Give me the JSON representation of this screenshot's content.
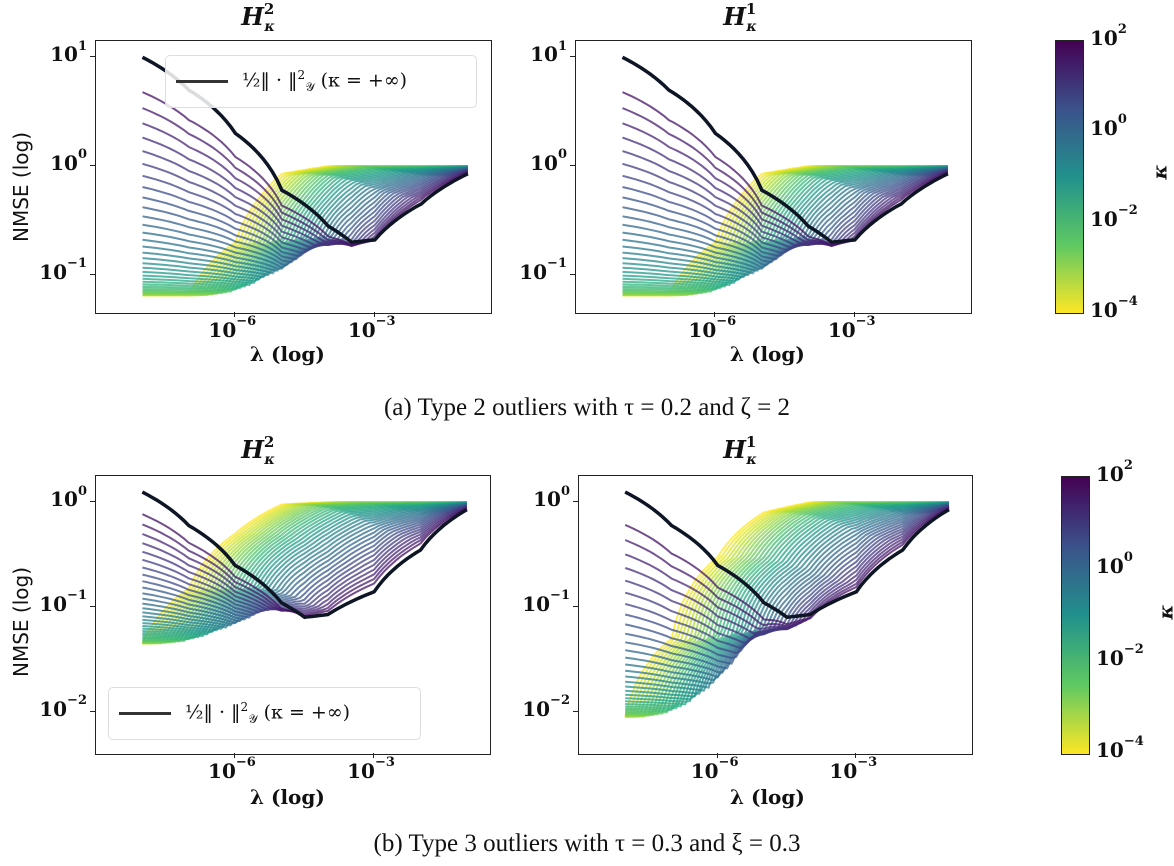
{
  "chart_data": [
    {
      "id": "a-left",
      "type": "line",
      "title": "H_κ^2",
      "title_base": "H",
      "title_sup": "2",
      "title_sub": "κ",
      "xlabel": "λ (log)",
      "ylabel": "NMSE (log)",
      "xscale": "log",
      "yscale": "log",
      "xlim_log10": [
        -9,
        -0.5
      ],
      "ylim_log10": [
        -1.35,
        1.15
      ],
      "xticks": [
        {
          "base": "10",
          "exp": "−6",
          "log": -6
        },
        {
          "base": "10",
          "exp": "−3",
          "log": -3
        }
      ],
      "yticks": [
        {
          "base": "10",
          "exp": "1",
          "log": 1
        },
        {
          "base": "10",
          "exp": "0",
          "log": 0
        },
        {
          "base": "10",
          "exp": "−1",
          "log": -1
        }
      ],
      "legend": {
        "label": "½‖·‖²_𝒴 (κ = +∞)",
        "position": "upper right"
      },
      "colorbar": {
        "cmap": "viridis",
        "label": "κ",
        "range_log10": [
          -4,
          2
        ]
      },
      "n_curves": 40,
      "series_description": "One curve per κ (10^-4 yellow … 10^2 purple); black reference curve κ=+∞ starts at 10 at λ=1e-8, decreases to min ≈0.2 near λ=1e-3, rises to ≈0.85 at λ=0.1; yellow curves start ≈0.065 and plateau at 1.0 above λ≈1e-5",
      "reference_curve": {
        "x_log10": [
          -8,
          -7,
          -6,
          -5,
          -4,
          -3.5,
          -3,
          -2,
          -1
        ],
        "y": [
          10,
          5,
          2,
          0.6,
          0.28,
          0.2,
          0.21,
          0.45,
          0.85
        ]
      },
      "low_kappa_curve": {
        "x_log10": [
          -8,
          -7,
          -6,
          -5.5,
          -5,
          -4,
          -3,
          -2,
          -1
        ],
        "y": [
          0.065,
          0.065,
          0.2,
          0.5,
          0.85,
          1.0,
          1.0,
          1.0,
          1.0
        ]
      },
      "floor": 0.065
    },
    {
      "id": "a-right",
      "type": "line",
      "title": "H_κ^1",
      "title_base": "H",
      "title_sup": "1",
      "title_sub": "κ",
      "xlabel": "λ (log)",
      "ylabel": "",
      "xscale": "log",
      "yscale": "log",
      "xlim_log10": [
        -9,
        -0.5
      ],
      "ylim_log10": [
        -1.35,
        1.15
      ],
      "xticks": [
        {
          "base": "10",
          "exp": "−6",
          "log": -6
        },
        {
          "base": "10",
          "exp": "−3",
          "log": -3
        }
      ],
      "yticks": [
        {
          "base": "10",
          "exp": "1",
          "log": 1
        },
        {
          "base": "10",
          "exp": "0",
          "log": 0
        },
        {
          "base": "10",
          "exp": "−1",
          "log": -1
        }
      ],
      "n_curves": 40,
      "reference_curve": {
        "x_log10": [
          -8,
          -7,
          -6,
          -5,
          -4,
          -3.5,
          -3,
          -2,
          -1
        ],
        "y": [
          10,
          5,
          2,
          0.6,
          0.28,
          0.2,
          0.21,
          0.45,
          0.85
        ]
      },
      "low_kappa_curve": {
        "x_log10": [
          -8,
          -7,
          -6,
          -5.5,
          -5,
          -4,
          -3,
          -2,
          -1
        ],
        "y": [
          0.065,
          0.065,
          0.2,
          0.5,
          0.85,
          1.0,
          1.0,
          1.0,
          1.0
        ]
      },
      "floor": 0.065
    },
    {
      "id": "b-left",
      "type": "line",
      "title": "H_κ^2",
      "title_base": "H",
      "title_sup": "2",
      "title_sub": "κ",
      "xlabel": "λ (log)",
      "ylabel": "NMSE (log)",
      "xscale": "log",
      "yscale": "log",
      "xlim_log10": [
        -9,
        -0.5
      ],
      "ylim_log10": [
        -2.4,
        0.25
      ],
      "xticks": [
        {
          "base": "10",
          "exp": "−6",
          "log": -6
        },
        {
          "base": "10",
          "exp": "−3",
          "log": -3
        }
      ],
      "yticks": [
        {
          "base": "10",
          "exp": "0",
          "log": 0
        },
        {
          "base": "10",
          "exp": "−1",
          "log": -1
        },
        {
          "base": "10",
          "exp": "−2",
          "log": -2
        }
      ],
      "legend": {
        "label": "½‖·‖²_𝒴 (κ = +∞)",
        "position": "lower left"
      },
      "n_curves": 40,
      "reference_curve": {
        "x_log10": [
          -8,
          -7,
          -6,
          -5,
          -4.5,
          -4,
          -3,
          -2,
          -1
        ],
        "y": [
          1.25,
          0.6,
          0.25,
          0.11,
          0.08,
          0.085,
          0.14,
          0.35,
          0.85
        ]
      },
      "low_kappa_curve": {
        "x_log10": [
          -8,
          -7,
          -6,
          -5,
          -4,
          -3,
          -2,
          -1
        ],
        "y": [
          0.045,
          0.15,
          0.5,
          0.95,
          1.0,
          1.0,
          1.0,
          1.0
        ]
      },
      "floor": 0.033
    },
    {
      "id": "b-right",
      "type": "line",
      "title": "H_κ^1",
      "title_base": "H",
      "title_sup": "1",
      "title_sub": "κ",
      "xlabel": "λ (log)",
      "ylabel": "",
      "xscale": "log",
      "yscale": "log",
      "xlim_log10": [
        -9,
        -0.5
      ],
      "ylim_log10": [
        -2.4,
        0.25
      ],
      "xticks": [
        {
          "base": "10",
          "exp": "−6",
          "log": -6
        },
        {
          "base": "10",
          "exp": "−3",
          "log": -3
        }
      ],
      "yticks": [
        {
          "base": "10",
          "exp": "0",
          "log": 0
        },
        {
          "base": "10",
          "exp": "−1",
          "log": -1
        },
        {
          "base": "10",
          "exp": "−2",
          "log": -2
        }
      ],
      "n_curves": 40,
      "reference_curve": {
        "x_log10": [
          -8,
          -7,
          -6,
          -5,
          -4.5,
          -4,
          -3,
          -2,
          -1
        ],
        "y": [
          1.25,
          0.6,
          0.25,
          0.11,
          0.08,
          0.085,
          0.14,
          0.35,
          0.85
        ]
      },
      "low_kappa_curve": {
        "x_log10": [
          -8,
          -7,
          -6,
          -5,
          -4,
          -3,
          -2,
          -1
        ],
        "y": [
          0.009,
          0.05,
          0.3,
          0.8,
          1.0,
          1.0,
          1.0,
          1.0
        ]
      },
      "floor": 0.005
    }
  ],
  "colorbars": [
    {
      "ticks": [
        {
          "base": "10",
          "exp": "2"
        },
        {
          "base": "10",
          "exp": "0"
        },
        {
          "base": "10",
          "exp": "−2"
        },
        {
          "base": "10",
          "exp": "−4"
        }
      ],
      "label": "κ"
    },
    {
      "ticks": [
        {
          "base": "10",
          "exp": "2"
        },
        {
          "base": "10",
          "exp": "0"
        },
        {
          "base": "10",
          "exp": "−2"
        },
        {
          "base": "10",
          "exp": "−4"
        }
      ],
      "label": "κ"
    }
  ],
  "captions": {
    "a": "(a) Type 2 outliers with τ = 0.2 and ζ = 2",
    "b": "(b) Type 3 outliers with τ = 0.3 and ξ = 0.3"
  },
  "legend_text": {
    "frac": "½",
    "norm": "‖ · ‖",
    "sup": "2",
    "sub": "𝒴",
    "rest": " (κ = +∞)"
  }
}
